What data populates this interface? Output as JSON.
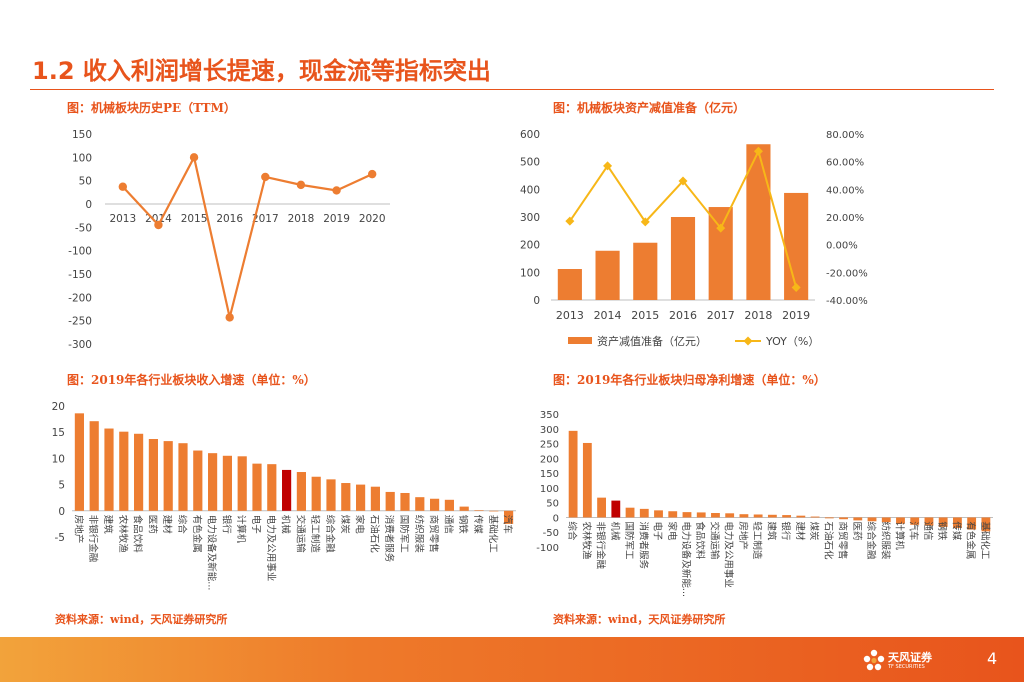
{
  "slide": {
    "title": "1.2 收入利润增长提速，现金流等指标突出",
    "page_number": "4",
    "logo_name": "天风证券",
    "logo_sub": "TF SECURITIES",
    "accent_color": "#E8541C",
    "bar_color": "#ED7D31",
    "highlight_color": "#C00000",
    "line_color": "#F7B718"
  },
  "captions": {
    "pe": "图：机械板块历史PE（TTM）",
    "impairment": "图：机械板块资产减值准备（亿元）",
    "revenue": "图：2019年各行业板块收入增速（单位：%）",
    "profit": "图：2019年各行业板块归母净利增速（单位：%）",
    "source_left": "资料来源：wind，天风证券研究所",
    "source_right": "资料来源：wind，天风证券研究所"
  },
  "chart_data": [
    {
      "id": "pe",
      "type": "line",
      "title": "图：机械板块历史PE（TTM）",
      "x": [
        "2013",
        "2014",
        "2015",
        "2016",
        "2017",
        "2018",
        "2019",
        "2020"
      ],
      "values": [
        37,
        -45,
        100,
        -243,
        58,
        41,
        29,
        64
      ],
      "ylim": [
        -300,
        150
      ],
      "yticks": [
        150,
        100,
        50,
        0,
        -50,
        -100,
        -150,
        -200,
        -250,
        -300
      ]
    },
    {
      "id": "impairment",
      "type": "bar",
      "title": "图：机械板块资产减值准备（亿元）",
      "categories": [
        "2013",
        "2014",
        "2015",
        "2016",
        "2017",
        "2018",
        "2019"
      ],
      "series": [
        {
          "name": "资产减值准备（亿元）",
          "type": "bar",
          "axis": "left",
          "values": [
            112,
            178,
            207,
            300,
            336,
            563,
            387
          ]
        },
        {
          "name": "YOY（%）",
          "type": "line",
          "axis": "right",
          "values": [
            17.0,
            57.0,
            16.5,
            46.0,
            12.0,
            67.5,
            -31.0
          ]
        }
      ],
      "ylim_left": [
        0,
        600
      ],
      "yticks_left": [
        600,
        500,
        400,
        300,
        200,
        100,
        0
      ],
      "ylim_right": [
        -40,
        80
      ],
      "yticks_right_labels": [
        "80.00%",
        "60.00%",
        "40.00%",
        "20.00%",
        "0.00%",
        "-20.00%",
        "-40.00%"
      ],
      "legend": "bottom"
    },
    {
      "id": "revenue",
      "type": "bar",
      "title": "图：2019年各行业板块收入增速（单位：%）",
      "categories": [
        "房地产",
        "非银行金融",
        "建筑",
        "农林牧渔",
        "食品饮料",
        "医药",
        "建材",
        "综合",
        "有色金属",
        "电力设备及新能...",
        "银行",
        "计算机",
        "电子",
        "电力及公用事业",
        "机械",
        "交通运输",
        "轻工制造",
        "综合金融",
        "煤炭",
        "家电",
        "石油石化",
        "消费者服务",
        "国防军工",
        "纺织服装",
        "商贸零售",
        "通信",
        "钢铁",
        "传媒",
        "基础化工",
        "汽车"
      ],
      "values": [
        18.6,
        17.1,
        15.7,
        15.1,
        14.7,
        13.7,
        13.3,
        12.9,
        11.5,
        11.0,
        10.5,
        10.4,
        9.0,
        8.9,
        7.8,
        7.4,
        6.5,
        6.0,
        5.3,
        5.0,
        4.6,
        3.6,
        3.4,
        2.6,
        2.3,
        2.1,
        0.8,
        0.1,
        -0.1,
        -2.5
      ],
      "highlight": "机械",
      "ylim": [
        -5,
        20
      ],
      "yticks": [
        20,
        15,
        10,
        5,
        0,
        -5
      ]
    },
    {
      "id": "profit",
      "type": "bar",
      "title": "图：2019年各行业板块归母净利增速（单位：%）",
      "categories": [
        "综合",
        "农林牧渔",
        "非银行金融",
        "机械",
        "国防军工",
        "消费者服务",
        "电子",
        "家电",
        "电力设备及新能...",
        "食品饮料",
        "交通运输",
        "电力及公用事业",
        "房地产",
        "轻工制造",
        "建筑",
        "银行",
        "建材",
        "煤炭",
        "石油石化",
        "商贸零售",
        "医药",
        "综合金融",
        "纺织服装",
        "计算机",
        "汽车",
        "通信",
        "钢铁",
        "传媒",
        "有色金属",
        "基础化工"
      ],
      "values": [
        293,
        252,
        67,
        57,
        33,
        29,
        24,
        21,
        18,
        17,
        15,
        14,
        11,
        10,
        9,
        8,
        6,
        3,
        -3,
        -6,
        -10,
        -13,
        -16,
        -21,
        -25,
        -28,
        -32,
        -36,
        -41,
        -47
      ],
      "highlight": "机械",
      "ylim": [
        -100,
        350
      ],
      "yticks": [
        350,
        300,
        250,
        200,
        150,
        100,
        50,
        0,
        -50,
        -100
      ]
    }
  ]
}
